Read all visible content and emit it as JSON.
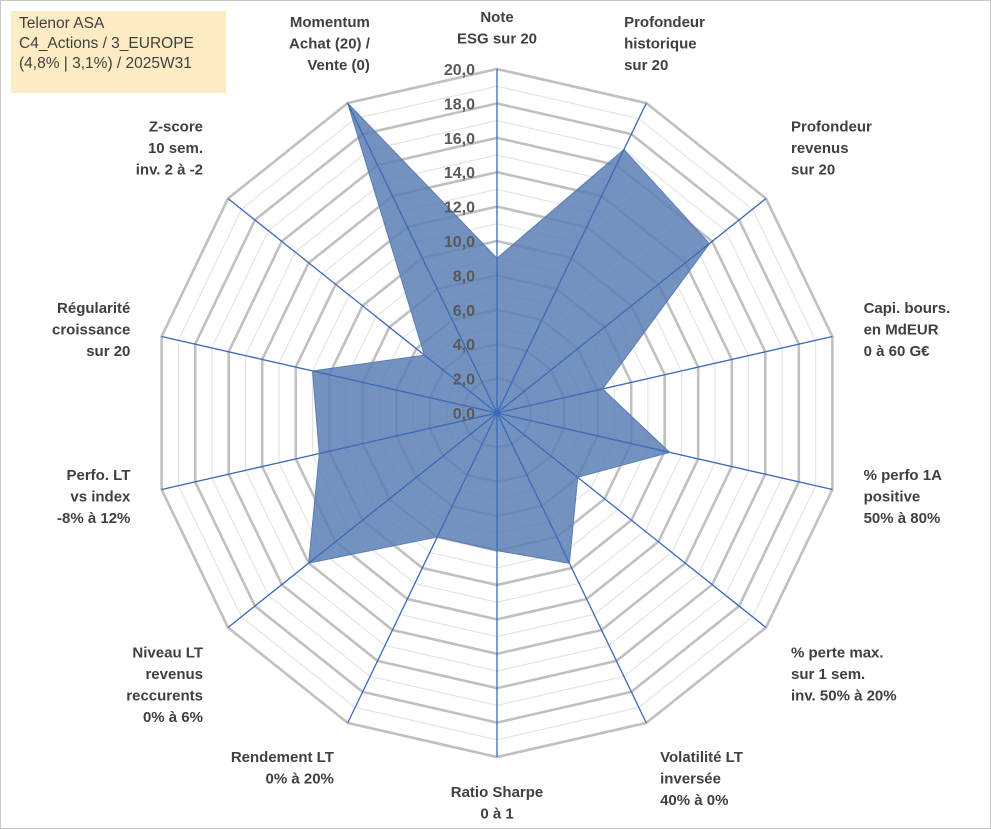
{
  "header": {
    "title_lines": [
      "Telenor ASA",
      "C4_Actions / 3_EUROPE",
      "(4,8% | 3,1%) / 2025W31"
    ]
  },
  "chart_data": {
    "type": "radar",
    "title": "",
    "axes": [
      [
        "Note",
        "ESG sur 20"
      ],
      [
        "Profondeur",
        "historique",
        "sur 20"
      ],
      [
        "Profondeur",
        "revenus",
        "sur 20"
      ],
      [
        "Capi. bours.",
        "en MdEUR",
        "0 à 60 G€"
      ],
      [
        "% perfo 1A",
        "positive",
        "50% à 80%"
      ],
      [
        "% perte max.",
        "sur 1 sem.",
        "inv. 50% à 20%"
      ],
      [
        "Volatilité LT",
        "inversée",
        "40% à 0%"
      ],
      [
        "Ratio Sharpe",
        "0 à 1"
      ],
      [
        "Rendement LT",
        "0% à 20%"
      ],
      [
        "Niveau LT",
        "revenus",
        "reccurents",
        "0% à 6%"
      ],
      [
        "Perfo. LT",
        "vs index",
        "-8% à 12%"
      ],
      [
        "Régularité",
        "croissance",
        "sur 20"
      ],
      [
        "Z-score",
        "10 sem.",
        "inv. 2 à -2"
      ],
      [
        "Momentum",
        "Achat (20) /",
        "Vente (0)"
      ]
    ],
    "series": [
      {
        "values": [
          9.0,
          17.0,
          15.8,
          6.3,
          10.3,
          6.0,
          9.7,
          8.0,
          8.0,
          14.0,
          10.6,
          11.0,
          5.4,
          20.0
        ]
      }
    ],
    "rlim": [
      0,
      20
    ],
    "tick_step": 2,
    "tick_labels": [
      "0,0",
      "2,0",
      "4,0",
      "6,0",
      "8,0",
      "10,0",
      "12,0",
      "14,0",
      "16,0",
      "18,0",
      "20,0"
    ],
    "grid": true,
    "legend": "none",
    "colors": {
      "fill": "#5a7fb5",
      "axis": "#3a6ab8",
      "grid_major": "#c0c0c0",
      "grid_minor": "#e4e4e4"
    }
  }
}
